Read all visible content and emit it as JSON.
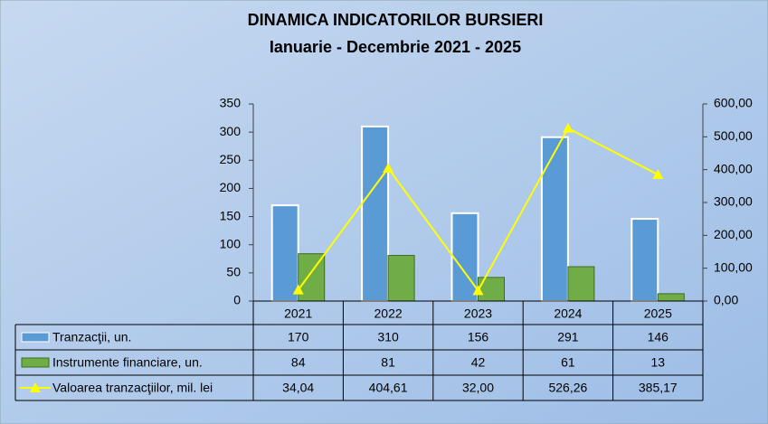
{
  "chart_data": {
    "type": "bar-line",
    "title": "DINAMICA INDICATORILOR BURSIERI",
    "subtitle": "Ianuarie  - Decembrie 2021 - 2025",
    "categories": [
      "2021",
      "2022",
      "2023",
      "2024",
      "2025"
    ],
    "series": [
      {
        "name": "Tranzacţii, un.",
        "type": "bar",
        "color": "#5b9bd5",
        "values": [
          170,
          310,
          156,
          291,
          146
        ]
      },
      {
        "name": "Instrumente financiare, un.",
        "type": "bar",
        "color": "#70ad47",
        "values": [
          84,
          81,
          42,
          61,
          13
        ]
      },
      {
        "name": "Valoarea tranzacţiilor, mil. lei",
        "type": "line",
        "axis": "y2",
        "color": "#ffff00",
        "values": [
          34.04,
          404.61,
          32.0,
          526.26,
          385.17
        ],
        "value_labels": [
          "34,04",
          "404,61",
          "32,00",
          "526,26",
          "385,17"
        ]
      }
    ],
    "ylim": [
      0,
      350
    ],
    "yticks": [
      0,
      50,
      100,
      150,
      200,
      250,
      300,
      350
    ],
    "y2lim": [
      0,
      600
    ],
    "y2ticks": [
      {
        "value": 0,
        "label": "0,00"
      },
      {
        "value": 100,
        "label": "100,00"
      },
      {
        "value": 200,
        "label": "200,00"
      },
      {
        "value": 300,
        "label": "300,00"
      },
      {
        "value": 400,
        "label": "400,00"
      },
      {
        "value": 500,
        "label": "500,00"
      },
      {
        "value": 600,
        "label": "600,00"
      }
    ],
    "grid": false,
    "legend": "table"
  }
}
